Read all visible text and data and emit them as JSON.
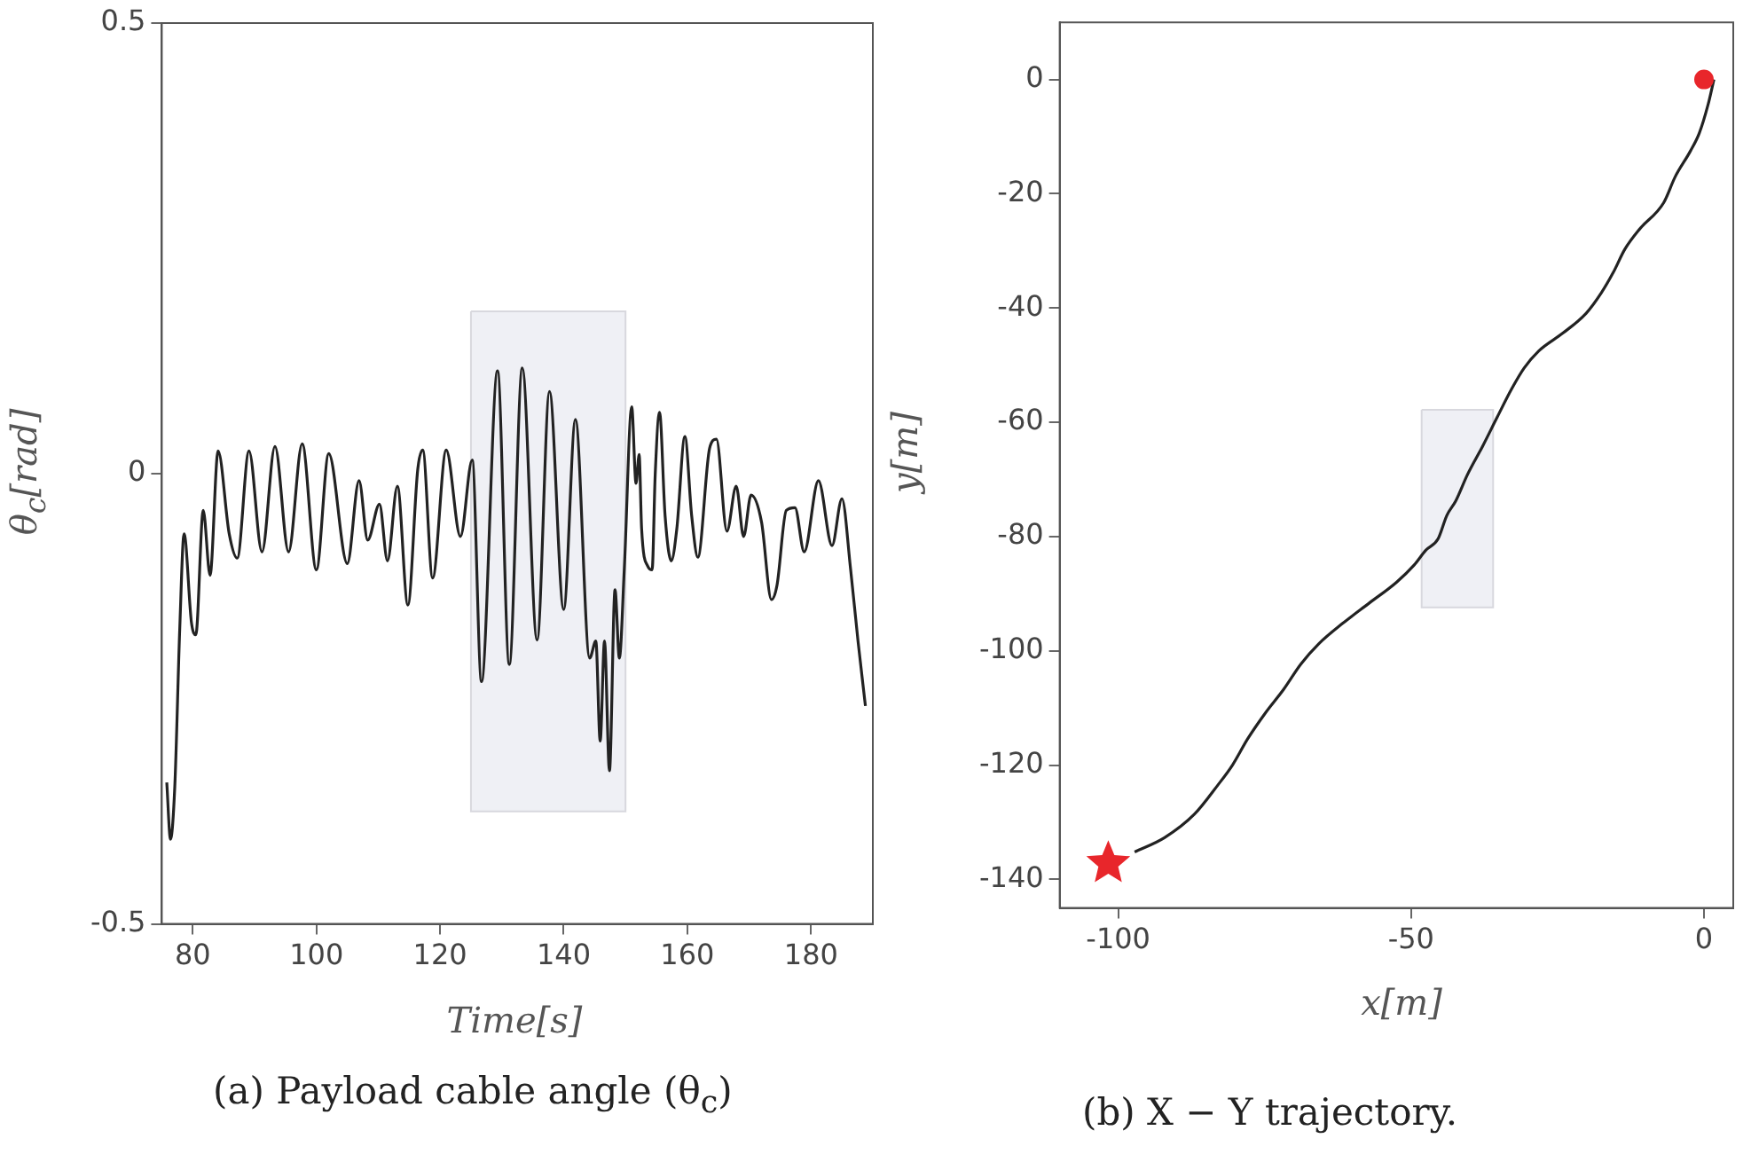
{
  "chart_data": [
    {
      "type": "line",
      "xlabel": "Time[s]",
      "ylabel": "θ$_{c}$[rad]",
      "annotations": [
        "(a) Payload cable angle (θ$_{c}$)"
      ],
      "xlim": [
        75,
        190
      ],
      "xticks": [
        80,
        100,
        120,
        140,
        160,
        180
      ],
      "ylim": [
        -0.5,
        0.5
      ],
      "yticks": [
        -0.5,
        0,
        0.5
      ],
      "series": [
        {
          "type": "area",
          "color": "#eff0f5",
          "x": [
            125,
            150,
            150,
            125,
            125
          ],
          "values": [
            0.18,
            0.18,
            -0.375,
            -0.375,
            0.18
          ]
        },
        {
          "color": "#222222",
          "x": [
            75.8,
            76.4,
            77.1,
            77.9,
            78.6,
            79.8,
            80.5,
            81.7,
            82.8,
            84.1,
            85.9,
            87.2,
            89.1,
            91.2,
            93.3,
            95.5,
            97.7,
            100,
            102,
            105,
            106.9,
            108.3,
            110.2,
            111.5,
            113.1,
            114.8,
            116.4,
            117.2,
            118.8,
            121,
            123.3,
            125.2,
            126.7,
            129.3,
            131.2,
            133.3,
            135.7,
            137.7,
            140,
            141.9,
            144.2,
            145.2,
            145.9,
            146.6,
            147.4,
            148.3,
            149,
            149.8,
            151,
            151.7,
            152.2,
            152.6,
            153.6,
            154.3,
            154.8,
            155.5,
            156.4,
            157.4,
            158.3,
            159.6,
            160.7,
            161.7,
            163.6,
            164.7,
            166.4,
            167.9,
            169.1,
            170.3,
            172,
            173.6,
            174.5,
            176,
            177.4,
            178.9,
            181.2,
            183.4,
            185,
            186.4,
            187.6,
            188.8
          ],
          "values": [
            -0.343,
            -0.406,
            -0.347,
            -0.172,
            -0.067,
            -0.166,
            -0.179,
            -0.041,
            -0.113,
            0.025,
            -0.067,
            -0.094,
            0.025,
            -0.087,
            0.03,
            -0.087,
            0.033,
            -0.107,
            0.022,
            -0.1,
            -0.008,
            -0.074,
            -0.034,
            -0.097,
            -0.014,
            -0.146,
            0.005,
            0.026,
            -0.116,
            0.026,
            -0.07,
            0.015,
            -0.231,
            0.114,
            -0.212,
            0.117,
            -0.185,
            0.091,
            -0.151,
            0.06,
            -0.205,
            -0.186,
            -0.297,
            -0.186,
            -0.33,
            -0.129,
            -0.205,
            -0.106,
            0.074,
            -0.011,
            0.021,
            -0.061,
            -0.103,
            -0.107,
            -0.001,
            0.068,
            -0.047,
            -0.097,
            -0.061,
            0.041,
            -0.047,
            -0.093,
            0.028,
            0.038,
            -0.064,
            -0.014,
            -0.07,
            -0.024,
            -0.054,
            -0.14,
            -0.124,
            -0.041,
            -0.038,
            -0.087,
            -0.008,
            -0.08,
            -0.028,
            -0.106,
            -0.186,
            -0.258
          ]
        }
      ]
    },
    {
      "type": "line",
      "xlabel": "x[m]",
      "ylabel": "y[m]",
      "annotations": [
        "(b) X − Y trajectory."
      ],
      "xlim": [
        -110,
        5
      ],
      "xticks": [
        -100,
        -50,
        0
      ],
      "ylim": [
        -145,
        10
      ],
      "yticks": [
        -140,
        -120,
        -100,
        -80,
        -60,
        -40,
        -20,
        0
      ],
      "series": [
        {
          "type": "area",
          "color": "#eff0f5",
          "x": [
            -48.2,
            -36,
            -36,
            -48.2,
            -48.2
          ],
          "values": [
            -57.8,
            -57.8,
            -92.4,
            -92.4,
            -57.8
          ]
        },
        {
          "color": "#222222",
          "x": [
            1.7,
            0.7,
            -0.8,
            -2.3,
            -4.9,
            -6.9,
            -11,
            -13.5,
            -15.5,
            -17.5,
            -20.1,
            -24.1,
            -28.2,
            -30.7,
            -32.8,
            -35.3,
            -37.8,
            -40.4,
            -42.4,
            -43.9,
            -45.4,
            -47.5,
            -49.5,
            -52.5,
            -57.1,
            -61.7,
            -65.7,
            -68.8,
            -71.8,
            -74.9,
            -77.9,
            -80.5,
            -83,
            -87,
            -92.1,
            -97.2
          ],
          "values": [
            0,
            -4.4,
            -9.4,
            -12.5,
            -17,
            -21.6,
            -26.2,
            -29.7,
            -33.8,
            -37.3,
            -40.9,
            -44.4,
            -47.5,
            -50.5,
            -54.1,
            -59.1,
            -64.2,
            -69.2,
            -73.8,
            -76.3,
            -80.4,
            -82.4,
            -85,
            -88,
            -91.6,
            -95.2,
            -98.7,
            -102.3,
            -106.8,
            -110.9,
            -115.4,
            -120,
            -123.5,
            -128.6,
            -132.7,
            -135.2
          ]
        },
        {
          "type": "scatter",
          "marker": "circle",
          "color": "#e8262b",
          "x": [
            0
          ],
          "values": [
            0
          ]
        },
        {
          "type": "scatter",
          "marker": "star",
          "color": "#e8262b",
          "x": [
            -101.7
          ],
          "values": [
            -137.2
          ]
        }
      ]
    }
  ]
}
